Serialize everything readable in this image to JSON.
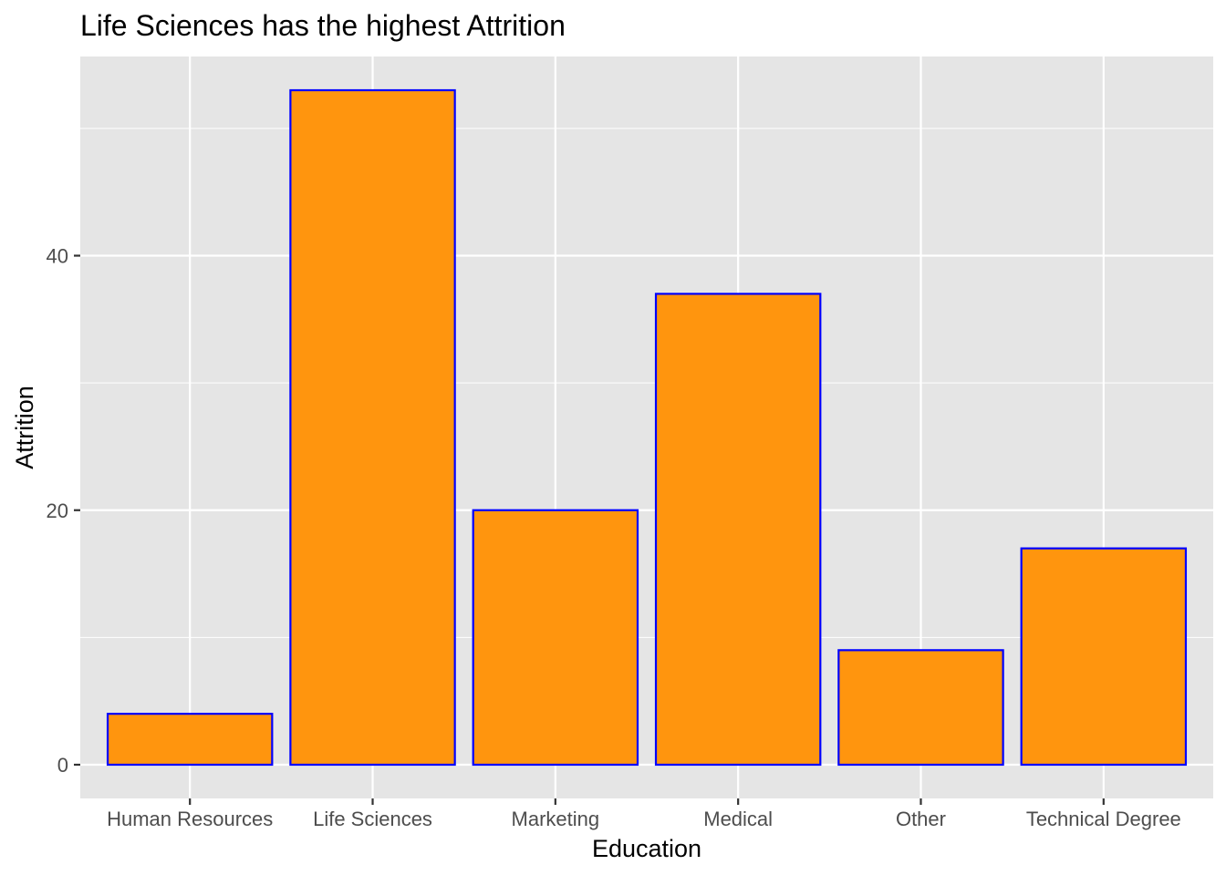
{
  "chart_data": {
    "type": "bar",
    "title": "Life Sciences has the highest Attrition",
    "xlabel": "Education",
    "ylabel": "Attrition",
    "categories": [
      "Human Resources",
      "Life Sciences",
      "Marketing",
      "Medical",
      "Other",
      "Technical Degree"
    ],
    "values": [
      4,
      53,
      20,
      37,
      9,
      17
    ],
    "ylim": [
      -2.65,
      55.65
    ],
    "yticks": [
      0,
      20,
      40
    ],
    "ytick_labels": [
      "0",
      "20",
      "40"
    ],
    "grid": true,
    "legend": "none",
    "colors": {
      "bar_fill": "#ff950e",
      "bar_stroke": "#0000ff",
      "panel_background": "#e5e5e5",
      "grid_line": "#ffffff",
      "tick_color": "#333333"
    }
  }
}
